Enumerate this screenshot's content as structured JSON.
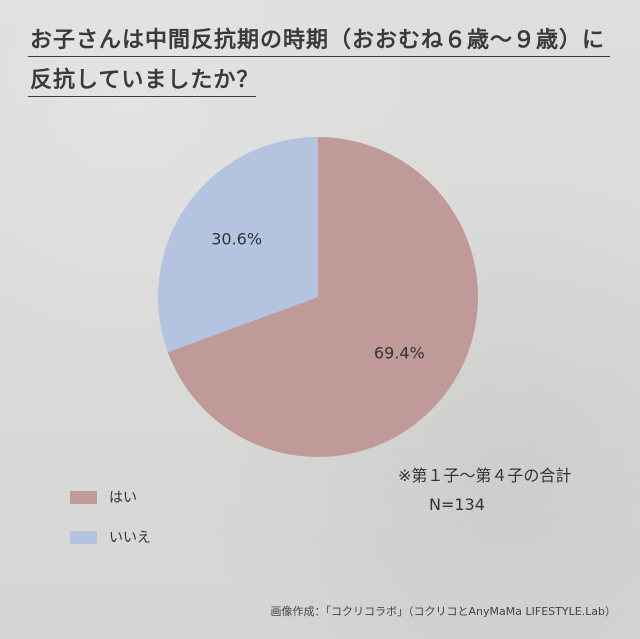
{
  "title": {
    "line1": "お子さんは中間反抗期の時期（おおむね６歳〜９歳）に",
    "line2": "反抗していましたか？"
  },
  "chart_data": {
    "type": "pie",
    "slices": [
      {
        "name": "はい",
        "value": 69.4,
        "label": "69.4%",
        "color": "#c09a98"
      },
      {
        "name": "いいえ",
        "value": 30.6,
        "label": "30.6%",
        "color": "#b3c3e0"
      }
    ],
    "start": "12 o'clock",
    "direction": "clockwise",
    "legend_placement": "bottom-left"
  },
  "legend": [
    {
      "label": "はい",
      "color": "#c09a98"
    },
    {
      "label": "いいえ",
      "color": "#b3c3e0"
    }
  ],
  "note": "※第１子〜第４子の合計",
  "sample_size": "N=134",
  "credit": "画像作成：「コクリコラボ」（コクリコとAnyMaMa LIFESTYLE.Lab）"
}
